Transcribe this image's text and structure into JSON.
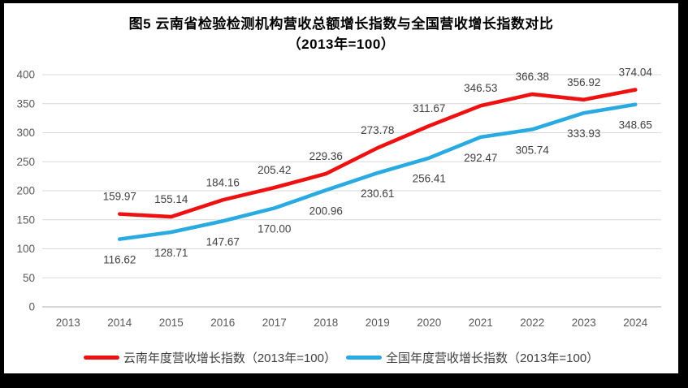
{
  "chart": {
    "title_line1": "图5  云南省检验检测机构营收总额增长指数与全国营收增长指数对比",
    "title_line2": "（2013年=100）"
  },
  "chart_data": {
    "type": "line",
    "title": "图5 云南省检验检测机构营收总额增长指数与全国营收增长指数对比（2013年=100）",
    "categories": [
      "2013",
      "2014",
      "2015",
      "2016",
      "2017",
      "2018",
      "2019",
      "2020",
      "2021",
      "2022",
      "2023",
      "2024"
    ],
    "series": [
      {
        "name": "云南年度营收增长指数（2013年=100）",
        "color": "#ee1111",
        "label_position": "above",
        "values": [
          null,
          159.97,
          155.14,
          184.16,
          205.42,
          229.36,
          273.78,
          311.67,
          346.53,
          366.38,
          356.92,
          374.04
        ]
      },
      {
        "name": "全国年度营收增长指数（2013年=100）",
        "color": "#29abe2",
        "label_position": "below",
        "values": [
          null,
          116.62,
          128.71,
          147.67,
          170.0,
          200.96,
          230.61,
          256.41,
          292.47,
          305.74,
          333.93,
          348.65
        ]
      }
    ],
    "ylim": [
      0,
      400
    ],
    "ytick_step": 50,
    "yticks": [
      0,
      50,
      100,
      150,
      200,
      250,
      300,
      350,
      400
    ],
    "grid": true,
    "legend_position": "bottom",
    "data_labels_decimals": 2
  },
  "colors": {
    "frame": "#000000",
    "background": "#ffffff",
    "gridline": "#d9d9d9",
    "axis_line": "#c8c8c8",
    "tick_text": "#595959",
    "data_label_text": "#404040",
    "title_text": "#000000"
  }
}
